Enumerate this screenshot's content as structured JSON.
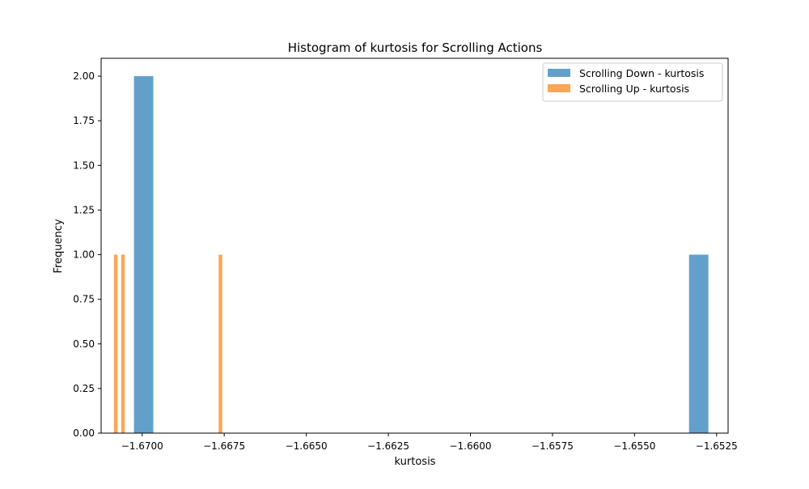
{
  "chart_data": {
    "type": "bar",
    "title": "Histogram of kurtosis for Scrolling Actions",
    "xlabel": "kurtosis",
    "ylabel": "Frequency",
    "xlim": [
      -1.67125,
      -1.65215
    ],
    "ylim": [
      0,
      2.1
    ],
    "xticks": [
      -1.67,
      -1.6675,
      -1.665,
      -1.6625,
      -1.66,
      -1.6575,
      -1.655,
      -1.6525
    ],
    "xtick_labels": [
      "−1.6700",
      "−1.6675",
      "−1.6650",
      "−1.6625",
      "−1.6600",
      "−1.6575",
      "−1.6550",
      "−1.6525"
    ],
    "yticks": [
      0,
      0.25,
      0.5,
      0.75,
      1.0,
      1.25,
      1.5,
      1.75,
      2.0
    ],
    "ytick_labels": [
      "0.00",
      "0.25",
      "0.50",
      "0.75",
      "1.00",
      "1.25",
      "1.50",
      "1.75",
      "2.00"
    ],
    "grid": false,
    "legend_position": "top-right",
    "series": [
      {
        "name": "Scrolling Down - kurtosis",
        "color": "#1f77b4",
        "opacity": 0.7,
        "bins": [
          {
            "x0": -1.67025,
            "x1": -1.66966,
            "value": 2
          },
          {
            "x0": -1.65334,
            "x1": -1.65275,
            "value": 1
          }
        ]
      },
      {
        "name": "Scrolling Up - kurtosis",
        "color": "#ff7f0e",
        "opacity": 0.7,
        "bins": [
          {
            "x0": -1.67086,
            "x1": -1.67075,
            "value": 1
          },
          {
            "x0": -1.67064,
            "x1": -1.67053,
            "value": 1
          },
          {
            "x0": -1.66767,
            "x1": -1.66756,
            "value": 1
          }
        ]
      }
    ]
  }
}
